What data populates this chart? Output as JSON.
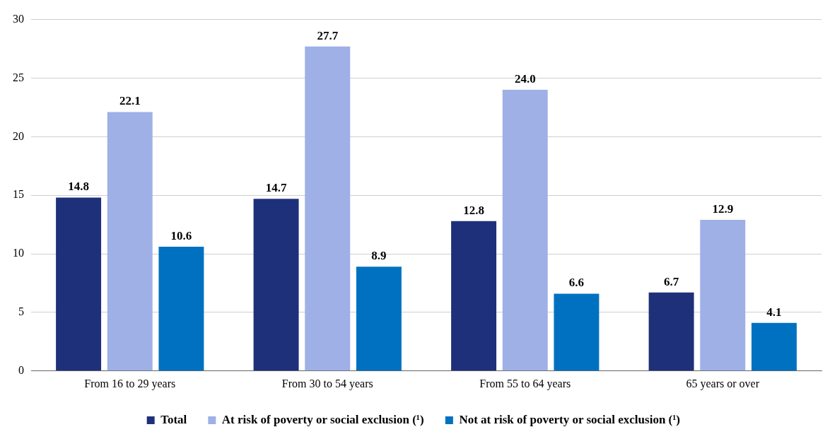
{
  "chart_data": {
    "type": "bar",
    "categories": [
      "From 16 to 29 years",
      "From 30 to 54 years",
      "From 55 to 64 years",
      "65 years or over"
    ],
    "series": [
      {
        "name": "Total",
        "color": "#1f307a",
        "values": [
          14.8,
          14.7,
          12.8,
          6.7
        ],
        "value_labels": [
          "14.8",
          "14.7",
          "12.8",
          "6.7"
        ]
      },
      {
        "name": "At risk of poverty or social exclusion (¹)",
        "color": "#9eb0e6",
        "values": [
          22.1,
          27.7,
          24.0,
          12.9
        ],
        "value_labels": [
          "22.1",
          "27.7",
          "24.0",
          "12.9"
        ]
      },
      {
        "name": "Not at risk of poverty or social exclusion (¹)",
        "color": "#0071c1",
        "values": [
          10.6,
          8.9,
          6.6,
          4.1
        ],
        "value_labels": [
          "10.6",
          "8.9",
          "6.6",
          "4.1"
        ]
      }
    ],
    "ylim": [
      0,
      30
    ],
    "yticks": [
      0,
      5,
      10,
      15,
      20,
      25,
      30
    ],
    "grid": "y",
    "legend": "bottom"
  }
}
